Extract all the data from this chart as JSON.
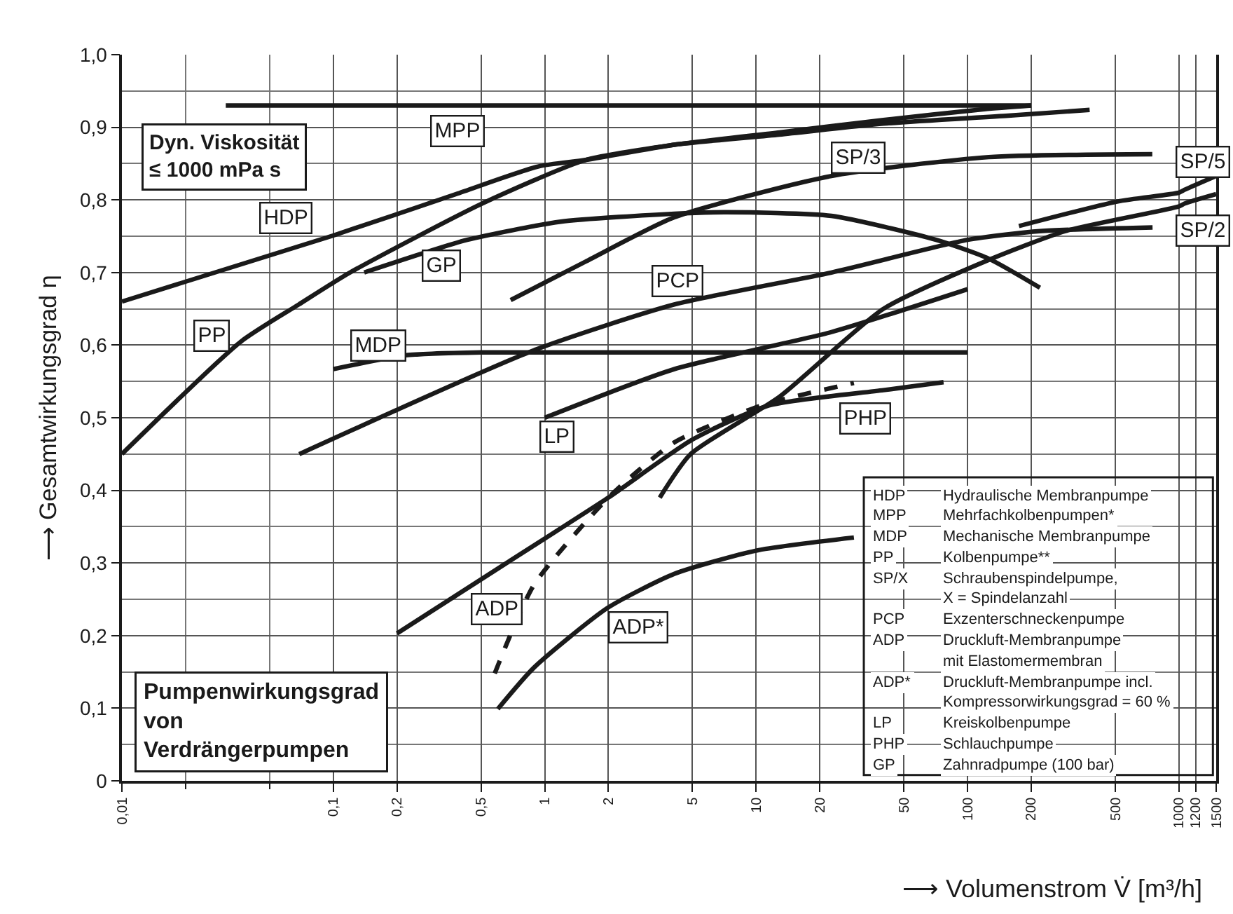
{
  "chart_data": {
    "type": "line",
    "title": "Pumpenwirkungsgrad\nvon\nVerdrängerpumpen",
    "xlabel": "⟶ Volumenstrom V̇ [m³/h]",
    "ylabel": "⟶ Gesamtwirkungsgrad η",
    "annotations": [
      "Dyn. Viskosität\n≤ 1000 mPa s",
      "HDP\tHydraulische Membranpumpe\nMPP\tMehrfachkolbenpumpen*\nMDP\tMechanische Membranpumpe\nPP\tKolbenpumpe**\nSP/X\tSchraubenspindelpumpe,\n\tX = Spindelanzahl\nPCP\tExzenterschneckenpumpe\nADP\tDruckluft-Membranpumpe\n\tmit Elastomermembran\nADP*\tDruckluft-Membranpumpe incl.\n\tKompressorwirkungsgrad = 60 %\nLP\tKreiskolbenpumpe\nPHP\tSchlauchpumpe\nGP\tZahnradpumpe (100 bar)"
    ],
    "log": "x",
    "grid": true,
    "xlim": [
      0.01,
      1500
    ],
    "xticks": [
      {
        "value": 0.01,
        "label": "0,01"
      },
      {
        "value": 0.1,
        "label": "0,1"
      },
      {
        "value": 0.2,
        "label": "0,2"
      },
      {
        "value": 0.5,
        "label": "0,5"
      },
      1,
      2,
      5,
      10,
      20,
      50,
      100,
      200,
      500,
      1000,
      1200,
      1500
    ],
    "ylim": [
      0,
      1
    ],
    "yticks": [
      0,
      {
        "value": 0.1,
        "label": "0,1"
      },
      {
        "value": 0.2,
        "label": "0,2"
      },
      {
        "value": 0.3,
        "label": "0,3"
      },
      {
        "value": 0.4,
        "label": "0,4"
      },
      {
        "value": 0.5,
        "label": "0,5"
      },
      {
        "value": 0.6,
        "label": "0,6"
      },
      {
        "value": 0.7,
        "label": "0,7"
      },
      {
        "value": 0.8,
        "label": "0,8"
      },
      {
        "value": 0.9,
        "label": "0,9"
      },
      {
        "value": 1.0,
        "label": "1,0"
      }
    ],
    "series": [
      {
        "name": "HDP",
        "color": "#1a1a1a",
        "x": [
          0.01,
          0.1,
          0.38,
          0.93,
          1.56,
          4.1,
          12.9,
          40,
          156,
          378
        ],
        "values": [
          0.66,
          0.751,
          0.808,
          0.846,
          0.855,
          0.876,
          0.89,
          0.905,
          0.916,
          0.924
        ]
      },
      {
        "name": "MPP",
        "color": "#1a1a1a",
        "x": [
          0.031,
          0.34,
          200
        ],
        "values": [
          0.93,
          0.93,
          0.93
        ]
      },
      {
        "name": "MDP",
        "color": "#1a1a1a",
        "x": [
          0.1,
          0.22,
          0.5,
          100
        ],
        "values": [
          0.567,
          0.586,
          0.59,
          0.59
        ]
      },
      {
        "name": "PP",
        "color": "#1a1a1a",
        "x": [
          0.01,
          0.0366,
          0.0687,
          0.12,
          0.506,
          1.56,
          4.1,
          12.9,
          40,
          120,
          200
        ],
        "values": [
          0.45,
          0.605,
          0.656,
          0.7,
          0.795,
          0.855,
          0.876,
          0.893,
          0.91,
          0.925,
          0.93
        ]
      },
      {
        "name": "SP/3",
        "color": "#1a1a1a",
        "x": [
          0.69,
          1.56,
          4.1,
          22.7,
          126,
          748
        ],
        "values": [
          0.662,
          0.715,
          0.776,
          0.833,
          0.859,
          0.863
        ]
      },
      {
        "name": "SP/5",
        "color": "#1a1a1a",
        "x": [
          175,
          514,
          1000,
          1064,
          1500
        ],
        "values": [
          0.764,
          0.798,
          0.81,
          0.814,
          0.833
        ]
      },
      {
        "name": "SP/2",
        "color": "#1a1a1a",
        "x": [
          3.5,
          4.9,
          12.9,
          40,
          125,
          290,
          1000,
          1064,
          1500
        ],
        "values": [
          0.39,
          0.45,
          0.529,
          0.65,
          0.717,
          0.757,
          0.791,
          0.795,
          0.808
        ]
      },
      {
        "name": "PCP",
        "color": "#1a1a1a",
        "x": [
          0.069,
          0.89,
          4.1,
          22.7,
          100,
          220,
          750
        ],
        "values": [
          0.45,
          0.593,
          0.656,
          0.7,
          0.745,
          0.757,
          0.762
        ]
      },
      {
        "name": "ADP",
        "color": "#1a1a1a",
        "line_style": "dashed",
        "x": [
          0.58,
          0.89,
          2,
          4.1,
          10.6,
          29
        ],
        "values": [
          0.148,
          0.27,
          0.39,
          0.466,
          0.517,
          0.548
        ]
      },
      {
        "name": "ADP*",
        "color": "#1a1a1a",
        "x": [
          0.6,
          0.89,
          1.98,
          4.1,
          10,
          29
        ],
        "values": [
          0.099,
          0.156,
          0.238,
          0.285,
          0.317,
          0.335
        ]
      },
      {
        "name": "LP",
        "color": "#1a1a1a",
        "x": [
          1.0,
          4.1,
          22.7,
          100
        ],
        "values": [
          0.5,
          0.567,
          0.618,
          0.677
        ]
      },
      {
        "name": "PHP",
        "color": "#1a1a1a",
        "x": [
          0.2,
          0.66,
          2,
          5,
          11.5,
          40,
          77
        ],
        "values": [
          0.203,
          0.3,
          0.39,
          0.47,
          0.517,
          0.538,
          0.549
        ]
      },
      {
        "name": "GP",
        "color": "#1a1a1a",
        "x": [
          0.14,
          0.43,
          1.19,
          4.1,
          7.2,
          22.7,
          71,
          126,
          220
        ],
        "values": [
          0.7,
          0.745,
          0.77,
          0.781,
          0.783,
          0.778,
          0.745,
          0.719,
          0.679
        ]
      }
    ]
  }
}
